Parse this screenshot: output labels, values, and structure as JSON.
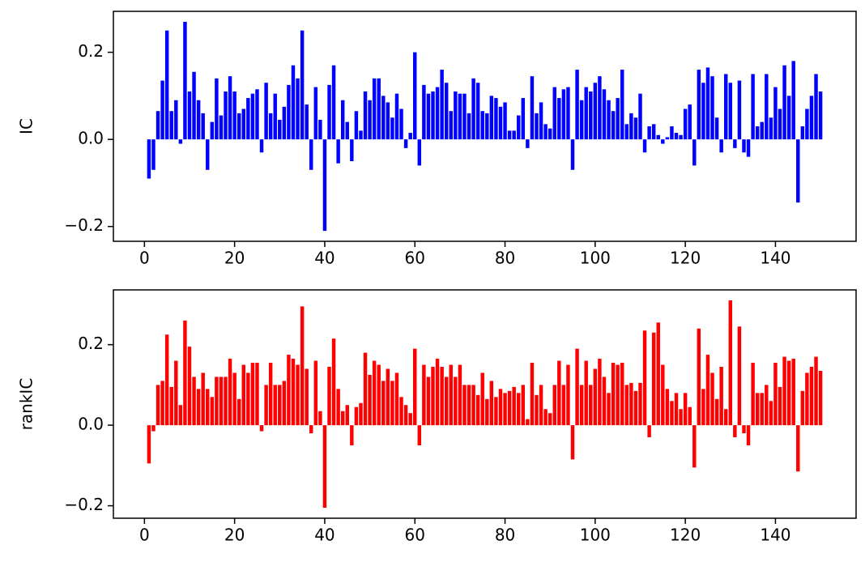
{
  "chart_data": [
    {
      "type": "bar",
      "ylabel": "IC",
      "color": "#0000ff",
      "x": [
        1,
        2,
        3,
        4,
        5,
        6,
        7,
        8,
        9,
        10,
        11,
        12,
        13,
        14,
        15,
        16,
        17,
        18,
        19,
        20,
        21,
        22,
        23,
        24,
        25,
        26,
        27,
        28,
        29,
        30,
        31,
        32,
        33,
        34,
        35,
        36,
        37,
        38,
        39,
        40,
        41,
        42,
        43,
        44,
        45,
        46,
        47,
        48,
        49,
        50,
        51,
        52,
        53,
        54,
        55,
        56,
        57,
        58,
        59,
        60,
        61,
        62,
        63,
        64,
        65,
        66,
        67,
        68,
        69,
        70,
        71,
        72,
        73,
        74,
        75,
        76,
        77,
        78,
        79,
        80,
        81,
        82,
        83,
        84,
        85,
        86,
        87,
        88,
        89,
        90,
        91,
        92,
        93,
        94,
        95,
        96,
        97,
        98,
        99,
        100,
        101,
        102,
        103,
        104,
        105,
        106,
        107,
        108,
        109,
        110,
        111,
        112,
        113,
        114,
        115,
        116,
        117,
        118,
        119,
        120,
        121,
        122,
        123,
        124,
        125,
        126,
        127,
        128,
        129,
        130,
        131,
        132,
        133,
        134,
        135,
        136,
        137,
        138,
        139,
        140,
        141,
        142,
        143,
        144,
        145,
        146,
        147,
        148,
        149,
        150
      ],
      "values": [
        -0.09,
        -0.07,
        0.065,
        0.135,
        0.25,
        0.065,
        0.09,
        -0.01,
        0.27,
        0.11,
        0.155,
        0.09,
        0.06,
        -0.07,
        0.04,
        0.14,
        0.055,
        0.11,
        0.145,
        0.11,
        0.06,
        0.07,
        0.095,
        0.105,
        0.115,
        -0.03,
        0.13,
        0.06,
        0.105,
        0.045,
        0.075,
        0.125,
        0.17,
        0.14,
        0.25,
        0.08,
        -0.07,
        0.12,
        0.045,
        -0.21,
        0.125,
        0.17,
        -0.055,
        0.09,
        0.04,
        -0.05,
        0.065,
        0.02,
        0.11,
        0.09,
        0.14,
        0.14,
        0.1,
        0.085,
        0.05,
        0.105,
        0.07,
        -0.02,
        0.015,
        0.2,
        -0.06,
        0.125,
        0.105,
        0.11,
        0.12,
        0.16,
        0.13,
        0.065,
        0.11,
        0.105,
        0.105,
        0.06,
        0.14,
        0.13,
        0.065,
        0.06,
        0.1,
        0.095,
        0.075,
        0.085,
        0.02,
        0.02,
        0.055,
        0.095,
        -0.02,
        0.145,
        0.06,
        0.085,
        0.035,
        0.025,
        0.12,
        0.095,
        0.115,
        0.12,
        -0.07,
        0.16,
        0.09,
        0.12,
        0.11,
        0.13,
        0.145,
        0.115,
        0.09,
        0.065,
        0.095,
        0.16,
        0.035,
        0.06,
        0.05,
        0.105,
        -0.03,
        0.03,
        0.035,
        0.01,
        -0.01,
        0.005,
        0.03,
        0.015,
        0.01,
        0.07,
        0.08,
        -0.06,
        0.16,
        0.13,
        0.165,
        0.145,
        0.05,
        -0.03,
        0.15,
        0.13,
        -0.02,
        0.135,
        -0.03,
        -0.04,
        0.15,
        0.03,
        0.04,
        0.15,
        0.05,
        0.12,
        0.07,
        0.17,
        0.1,
        0.18,
        -0.145,
        0.03,
        0.07,
        0.1,
        0.15,
        0.11
      ],
      "xlim": [
        -6.89,
        157.89
      ],
      "xticks": [
        0,
        20,
        40,
        60,
        80,
        100,
        120,
        140
      ],
      "ylim": [
        -0.234,
        0.294
      ],
      "yticks": [
        {
          "value": -0.2,
          "label": "−0.2"
        },
        {
          "value": 0,
          "label": "0.0"
        },
        0.2
      ]
    },
    {
      "type": "bar",
      "ylabel": "rankIC",
      "color": "#ff0000",
      "x": [
        1,
        2,
        3,
        4,
        5,
        6,
        7,
        8,
        9,
        10,
        11,
        12,
        13,
        14,
        15,
        16,
        17,
        18,
        19,
        20,
        21,
        22,
        23,
        24,
        25,
        26,
        27,
        28,
        29,
        30,
        31,
        32,
        33,
        34,
        35,
        36,
        37,
        38,
        39,
        40,
        41,
        42,
        43,
        44,
        45,
        46,
        47,
        48,
        49,
        50,
        51,
        52,
        53,
        54,
        55,
        56,
        57,
        58,
        59,
        60,
        61,
        62,
        63,
        64,
        65,
        66,
        67,
        68,
        69,
        70,
        71,
        72,
        73,
        74,
        75,
        76,
        77,
        78,
        79,
        80,
        81,
        82,
        83,
        84,
        85,
        86,
        87,
        88,
        89,
        90,
        91,
        92,
        93,
        94,
        95,
        96,
        97,
        98,
        99,
        100,
        101,
        102,
        103,
        104,
        105,
        106,
        107,
        108,
        109,
        110,
        111,
        112,
        113,
        114,
        115,
        116,
        117,
        118,
        119,
        120,
        121,
        122,
        123,
        124,
        125,
        126,
        127,
        128,
        129,
        130,
        131,
        132,
        133,
        134,
        135,
        136,
        137,
        138,
        139,
        140,
        141,
        142,
        143,
        144,
        145,
        146,
        147,
        148,
        149,
        150
      ],
      "values": [
        -0.095,
        -0.015,
        0.1,
        0.11,
        0.225,
        0.095,
        0.16,
        0.05,
        0.26,
        0.195,
        0.12,
        0.09,
        0.13,
        0.09,
        0.07,
        0.12,
        0.12,
        0.12,
        0.165,
        0.13,
        0.065,
        0.15,
        0.13,
        0.155,
        0.155,
        -0.015,
        0.1,
        0.155,
        0.1,
        0.1,
        0.11,
        0.175,
        0.165,
        0.15,
        0.295,
        0.14,
        -0.02,
        0.16,
        0.035,
        -0.205,
        0.145,
        0.215,
        0.09,
        0.035,
        0.05,
        -0.05,
        0.045,
        0.055,
        0.18,
        0.125,
        0.16,
        0.15,
        0.11,
        0.14,
        0.11,
        0.13,
        0.07,
        0.05,
        0.03,
        0.19,
        -0.05,
        0.15,
        0.12,
        0.145,
        0.165,
        0.145,
        0.12,
        0.15,
        0.12,
        0.15,
        0.1,
        0.1,
        0.1,
        0.075,
        0.13,
        0.065,
        0.11,
        0.07,
        0.09,
        0.08,
        0.085,
        0.095,
        0.08,
        0.1,
        0.015,
        0.155,
        0.075,
        0.1,
        0.04,
        0.03,
        0.1,
        0.16,
        0.1,
        0.15,
        -0.085,
        0.19,
        0.1,
        0.16,
        0.1,
        0.14,
        0.165,
        0.12,
        0.08,
        0.155,
        0.15,
        0.155,
        0.1,
        0.105,
        0.085,
        0.105,
        0.235,
        -0.03,
        0.23,
        0.255,
        0.15,
        0.09,
        0.06,
        0.08,
        0.04,
        0.08,
        0.045,
        -0.105,
        0.24,
        0.09,
        0.175,
        0.13,
        0.065,
        0.145,
        0.04,
        0.31,
        -0.03,
        0.245,
        -0.02,
        -0.05,
        0.155,
        0.08,
        0.08,
        0.1,
        0.06,
        0.155,
        0.095,
        0.17,
        0.16,
        0.165,
        -0.115,
        0.085,
        0.13,
        0.145,
        0.17,
        0.135
      ],
      "xlim": [
        -6.89,
        157.89
      ],
      "xticks": [
        0,
        20,
        40,
        60,
        80,
        100,
        120,
        140
      ],
      "ylim": [
        -0.231,
        0.336
      ],
      "yticks": [
        {
          "value": -0.2,
          "label": "−0.2"
        },
        {
          "value": 0,
          "label": "0.0"
        },
        0.2
      ]
    }
  ]
}
